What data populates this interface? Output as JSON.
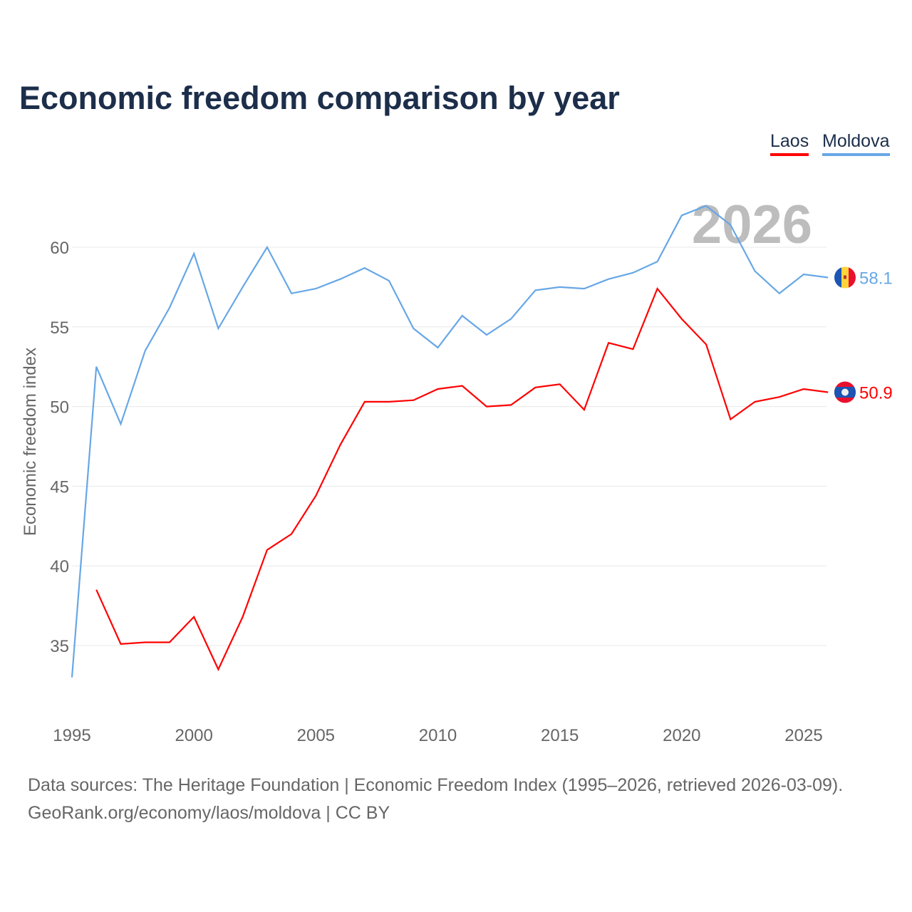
{
  "chart_data": {
    "type": "line",
    "title": "Economic freedom comparison by year",
    "xlabel": "",
    "ylabel": "Economic freedom index",
    "xlim": [
      1995,
      2026
    ],
    "ylim": [
      31,
      64
    ],
    "x_ticks": [
      1995,
      2000,
      2005,
      2010,
      2015,
      2020,
      2025
    ],
    "y_ticks": [
      35,
      40,
      45,
      50,
      55,
      60
    ],
    "grid": true,
    "legend_position": "top-right",
    "highlight_label": "2026",
    "series": [
      {
        "name": "Laos",
        "color": "#ff0000",
        "end_label": "50.9",
        "x": [
          1996,
          1997,
          1998,
          1999,
          2000,
          2001,
          2002,
          2003,
          2004,
          2005,
          2006,
          2007,
          2008,
          2009,
          2010,
          2011,
          2012,
          2013,
          2014,
          2015,
          2016,
          2017,
          2018,
          2019,
          2020,
          2021,
          2022,
          2023,
          2024,
          2025,
          2026
        ],
        "values": [
          38.5,
          35.1,
          35.2,
          35.2,
          36.8,
          33.5,
          36.8,
          41.0,
          42.0,
          44.4,
          47.6,
          50.3,
          50.3,
          50.4,
          51.1,
          51.3,
          50.0,
          50.1,
          51.2,
          51.4,
          49.8,
          54.0,
          53.6,
          57.4,
          55.5,
          53.9,
          49.2,
          50.3,
          50.6,
          51.1,
          50.9
        ]
      },
      {
        "name": "Moldova",
        "color": "#67a7e6",
        "end_label": "58.1",
        "x": [
          1995,
          1996,
          1997,
          1998,
          1999,
          2000,
          2001,
          2002,
          2003,
          2004,
          2005,
          2006,
          2007,
          2008,
          2009,
          2010,
          2011,
          2012,
          2013,
          2014,
          2015,
          2016,
          2017,
          2018,
          2019,
          2020,
          2021,
          2022,
          2023,
          2024,
          2025,
          2026
        ],
        "values": [
          33.0,
          52.5,
          48.9,
          53.5,
          56.2,
          59.6,
          54.9,
          57.5,
          60.0,
          57.1,
          57.4,
          58.0,
          58.7,
          57.9,
          54.9,
          53.7,
          55.7,
          54.5,
          55.5,
          57.3,
          57.5,
          57.4,
          58.0,
          58.4,
          59.1,
          62.0,
          62.6,
          61.4,
          58.5,
          57.1,
          58.3,
          58.1
        ]
      }
    ]
  },
  "footer": {
    "sources": "Data sources: The Heritage Foundation | Economic Freedom Index (1995–2026, retrieved 2026-03-09).",
    "credit": "GeoRank.org/economy/laos/moldova | CC BY"
  }
}
